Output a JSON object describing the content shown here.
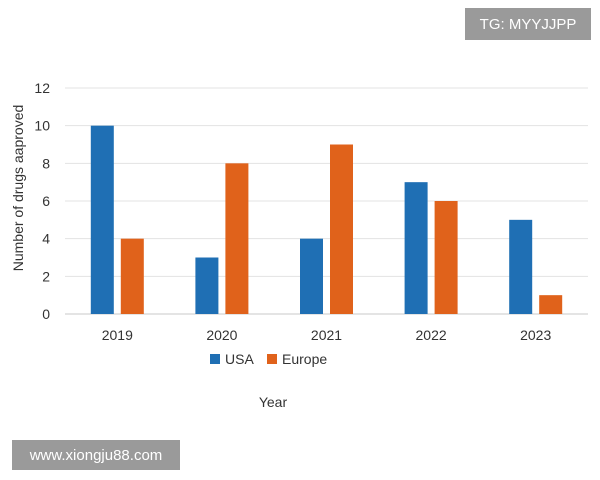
{
  "watermarks": {
    "top": "TG: MYYJJPP",
    "bottom": "www.xiongju88.com"
  },
  "chart_data": {
    "type": "bar",
    "title": "",
    "xlabel": "Year",
    "ylabel": "Number of drugs aaproved",
    "categories": [
      "2019",
      "2020",
      "2021",
      "2022",
      "2023"
    ],
    "series": [
      {
        "name": "USA",
        "values": [
          10,
          3,
          4,
          7,
          5
        ],
        "color": "#1f6fb4"
      },
      {
        "name": "Europe",
        "values": [
          4,
          8,
          9,
          6,
          1
        ],
        "color": "#e0621b"
      }
    ],
    "ylim": [
      0,
      12
    ],
    "yticks": [
      "0",
      "2",
      "4",
      "6",
      "8",
      "10",
      "12"
    ],
    "grid": true,
    "legend": "bottom-left"
  }
}
